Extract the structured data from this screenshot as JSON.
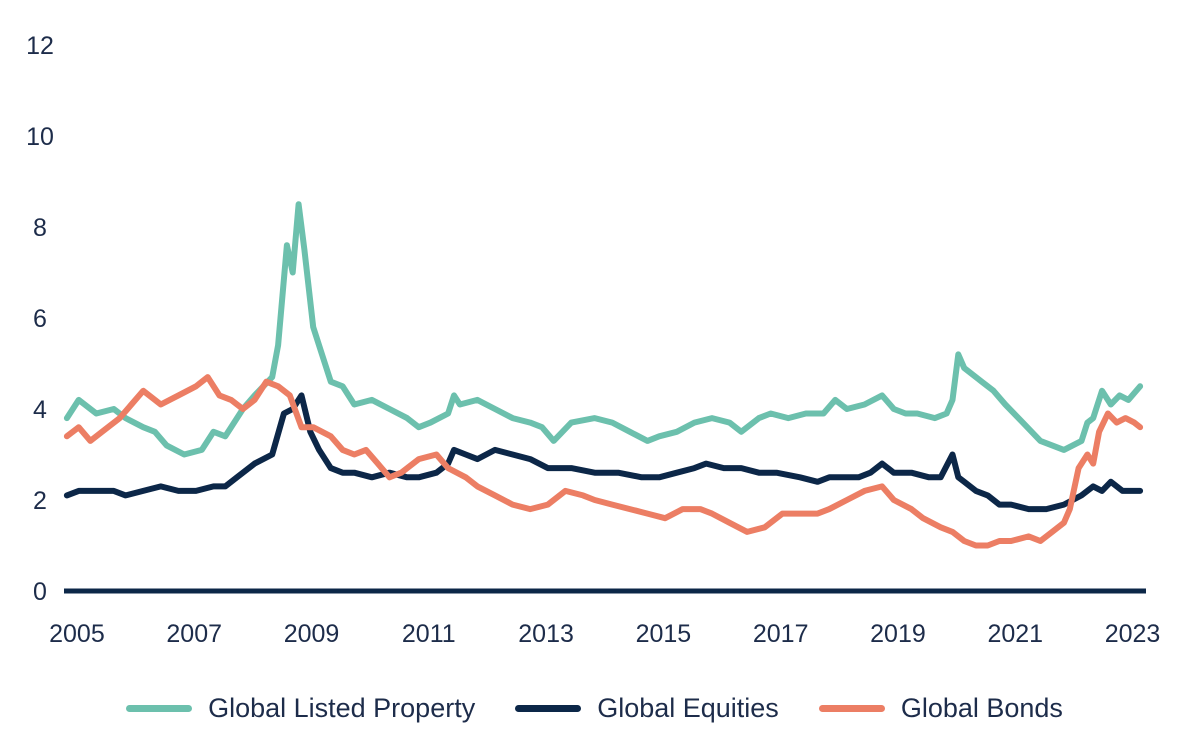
{
  "chart_data": {
    "type": "line",
    "title": "",
    "xlabel": "",
    "ylabel": "",
    "xlim": [
      2004.95,
      2023.4
    ],
    "ylim": [
      0,
      12
    ],
    "x_ticks": [
      "2005",
      "2007",
      "2009",
      "2011",
      "2013",
      "2015",
      "2017",
      "2019",
      "2021",
      "2023"
    ],
    "y_ticks": [
      "0",
      "2",
      "4",
      "6",
      "8",
      "10",
      "12"
    ],
    "grid": false,
    "legend_position": "bottom",
    "series": [
      {
        "name": "Global Listed Property",
        "color": "#6cc0ad",
        "x": [
          2005.0,
          2005.2,
          2005.5,
          2005.8,
          2006.0,
          2006.3,
          2006.5,
          2006.7,
          2007.0,
          2007.3,
          2007.5,
          2007.7,
          2008.0,
          2008.2,
          2008.5,
          2008.6,
          2008.75,
          2008.85,
          2008.95,
          2009.05,
          2009.2,
          2009.35,
          2009.5,
          2009.7,
          2009.9,
          2010.2,
          2010.5,
          2010.8,
          2011.0,
          2011.2,
          2011.5,
          2011.6,
          2011.7,
          2012.0,
          2012.3,
          2012.6,
          2012.9,
          2013.1,
          2013.3,
          2013.6,
          2014.0,
          2014.3,
          2014.6,
          2014.9,
          2015.1,
          2015.4,
          2015.7,
          2016.0,
          2016.3,
          2016.5,
          2016.8,
          2017.0,
          2017.3,
          2017.6,
          2017.9,
          2018.1,
          2018.3,
          2018.6,
          2018.9,
          2019.1,
          2019.3,
          2019.5,
          2019.8,
          2020.0,
          2020.1,
          2020.2,
          2020.3,
          2020.6,
          2020.8,
          2021.0,
          2021.3,
          2021.6,
          2021.8,
          2022.0,
          2022.3,
          2022.4,
          2022.5,
          2022.65,
          2022.8,
          2022.95,
          2023.1,
          2023.3
        ],
        "values": [
          3.8,
          4.2,
          3.9,
          4.0,
          3.8,
          3.6,
          3.5,
          3.2,
          3.0,
          3.1,
          3.5,
          3.4,
          4.0,
          4.3,
          4.7,
          5.4,
          7.6,
          7.0,
          8.5,
          7.5,
          5.8,
          5.2,
          4.6,
          4.5,
          4.1,
          4.2,
          4.0,
          3.8,
          3.6,
          3.7,
          3.9,
          4.3,
          4.1,
          4.2,
          4.0,
          3.8,
          3.7,
          3.6,
          3.3,
          3.7,
          3.8,
          3.7,
          3.5,
          3.3,
          3.4,
          3.5,
          3.7,
          3.8,
          3.7,
          3.5,
          3.8,
          3.9,
          3.8,
          3.9,
          3.9,
          4.2,
          4.0,
          4.1,
          4.3,
          4.0,
          3.9,
          3.9,
          3.8,
          3.9,
          4.2,
          5.2,
          4.9,
          4.6,
          4.4,
          4.1,
          3.7,
          3.3,
          3.2,
          3.1,
          3.3,
          3.7,
          3.8,
          4.4,
          4.1,
          4.3,
          4.2,
          4.5
        ]
      },
      {
        "name": "Global Equities",
        "color": "#0c2748",
        "x": [
          2005.0,
          2005.2,
          2005.5,
          2005.8,
          2006.0,
          2006.3,
          2006.6,
          2006.9,
          2007.2,
          2007.5,
          2007.7,
          2007.9,
          2008.2,
          2008.5,
          2008.7,
          2008.85,
          2009.0,
          2009.15,
          2009.3,
          2009.5,
          2009.7,
          2009.9,
          2010.2,
          2010.5,
          2010.8,
          2011.0,
          2011.3,
          2011.5,
          2011.6,
          2011.8,
          2012.0,
          2012.3,
          2012.6,
          2012.9,
          2013.2,
          2013.6,
          2014.0,
          2014.4,
          2014.8,
          2015.1,
          2015.4,
          2015.7,
          2015.9,
          2016.2,
          2016.5,
          2016.8,
          2017.1,
          2017.5,
          2017.8,
          2018.0,
          2018.2,
          2018.5,
          2018.7,
          2018.9,
          2019.1,
          2019.4,
          2019.7,
          2019.9,
          2020.1,
          2020.2,
          2020.3,
          2020.5,
          2020.7,
          2020.9,
          2021.1,
          2021.4,
          2021.7,
          2022.0,
          2022.3,
          2022.5,
          2022.65,
          2022.8,
          2023.0,
          2023.3
        ],
        "values": [
          2.1,
          2.2,
          2.2,
          2.2,
          2.1,
          2.2,
          2.3,
          2.2,
          2.2,
          2.3,
          2.3,
          2.5,
          2.8,
          3.0,
          3.9,
          4.0,
          4.3,
          3.5,
          3.1,
          2.7,
          2.6,
          2.6,
          2.5,
          2.6,
          2.5,
          2.5,
          2.6,
          2.8,
          3.1,
          3.0,
          2.9,
          3.1,
          3.0,
          2.9,
          2.7,
          2.7,
          2.6,
          2.6,
          2.5,
          2.5,
          2.6,
          2.7,
          2.8,
          2.7,
          2.7,
          2.6,
          2.6,
          2.5,
          2.4,
          2.5,
          2.5,
          2.5,
          2.6,
          2.8,
          2.6,
          2.6,
          2.5,
          2.5,
          3.0,
          2.5,
          2.4,
          2.2,
          2.1,
          1.9,
          1.9,
          1.8,
          1.8,
          1.9,
          2.1,
          2.3,
          2.2,
          2.4,
          2.2,
          2.2
        ]
      },
      {
        "name": "Global Bonds",
        "color": "#ec7e64",
        "x": [
          2005.0,
          2005.2,
          2005.4,
          2005.6,
          2005.9,
          2006.1,
          2006.3,
          2006.6,
          2006.9,
          2007.2,
          2007.4,
          2007.6,
          2007.8,
          2008.0,
          2008.2,
          2008.4,
          2008.6,
          2008.8,
          2009.0,
          2009.2,
          2009.5,
          2009.7,
          2009.9,
          2010.1,
          2010.3,
          2010.5,
          2010.7,
          2011.0,
          2011.3,
          2011.5,
          2011.8,
          2012.0,
          2012.3,
          2012.6,
          2012.9,
          2013.2,
          2013.5,
          2013.8,
          2014.0,
          2014.3,
          2014.6,
          2014.9,
          2015.2,
          2015.5,
          2015.8,
          2016.0,
          2016.3,
          2016.6,
          2016.9,
          2017.2,
          2017.5,
          2017.8,
          2018.0,
          2018.3,
          2018.6,
          2018.9,
          2019.1,
          2019.4,
          2019.6,
          2019.9,
          2020.1,
          2020.3,
          2020.5,
          2020.7,
          2020.9,
          2021.1,
          2021.4,
          2021.6,
          2021.8,
          2022.0,
          2022.1,
          2022.25,
          2022.4,
          2022.5,
          2022.6,
          2022.75,
          2022.9,
          2023.05,
          2023.2,
          2023.3
        ],
        "values": [
          3.4,
          3.6,
          3.3,
          3.5,
          3.8,
          4.1,
          4.4,
          4.1,
          4.3,
          4.5,
          4.7,
          4.3,
          4.2,
          4.0,
          4.2,
          4.6,
          4.5,
          4.3,
          3.6,
          3.6,
          3.4,
          3.1,
          3.0,
          3.1,
          2.8,
          2.5,
          2.6,
          2.9,
          3.0,
          2.7,
          2.5,
          2.3,
          2.1,
          1.9,
          1.8,
          1.9,
          2.2,
          2.1,
          2.0,
          1.9,
          1.8,
          1.7,
          1.6,
          1.8,
          1.8,
          1.7,
          1.5,
          1.3,
          1.4,
          1.7,
          1.7,
          1.7,
          1.8,
          2.0,
          2.2,
          2.3,
          2.0,
          1.8,
          1.6,
          1.4,
          1.3,
          1.1,
          1.0,
          1.0,
          1.1,
          1.1,
          1.2,
          1.1,
          1.3,
          1.5,
          1.8,
          2.7,
          3.0,
          2.8,
          3.5,
          3.9,
          3.7,
          3.8,
          3.7,
          3.6
        ]
      }
    ]
  }
}
